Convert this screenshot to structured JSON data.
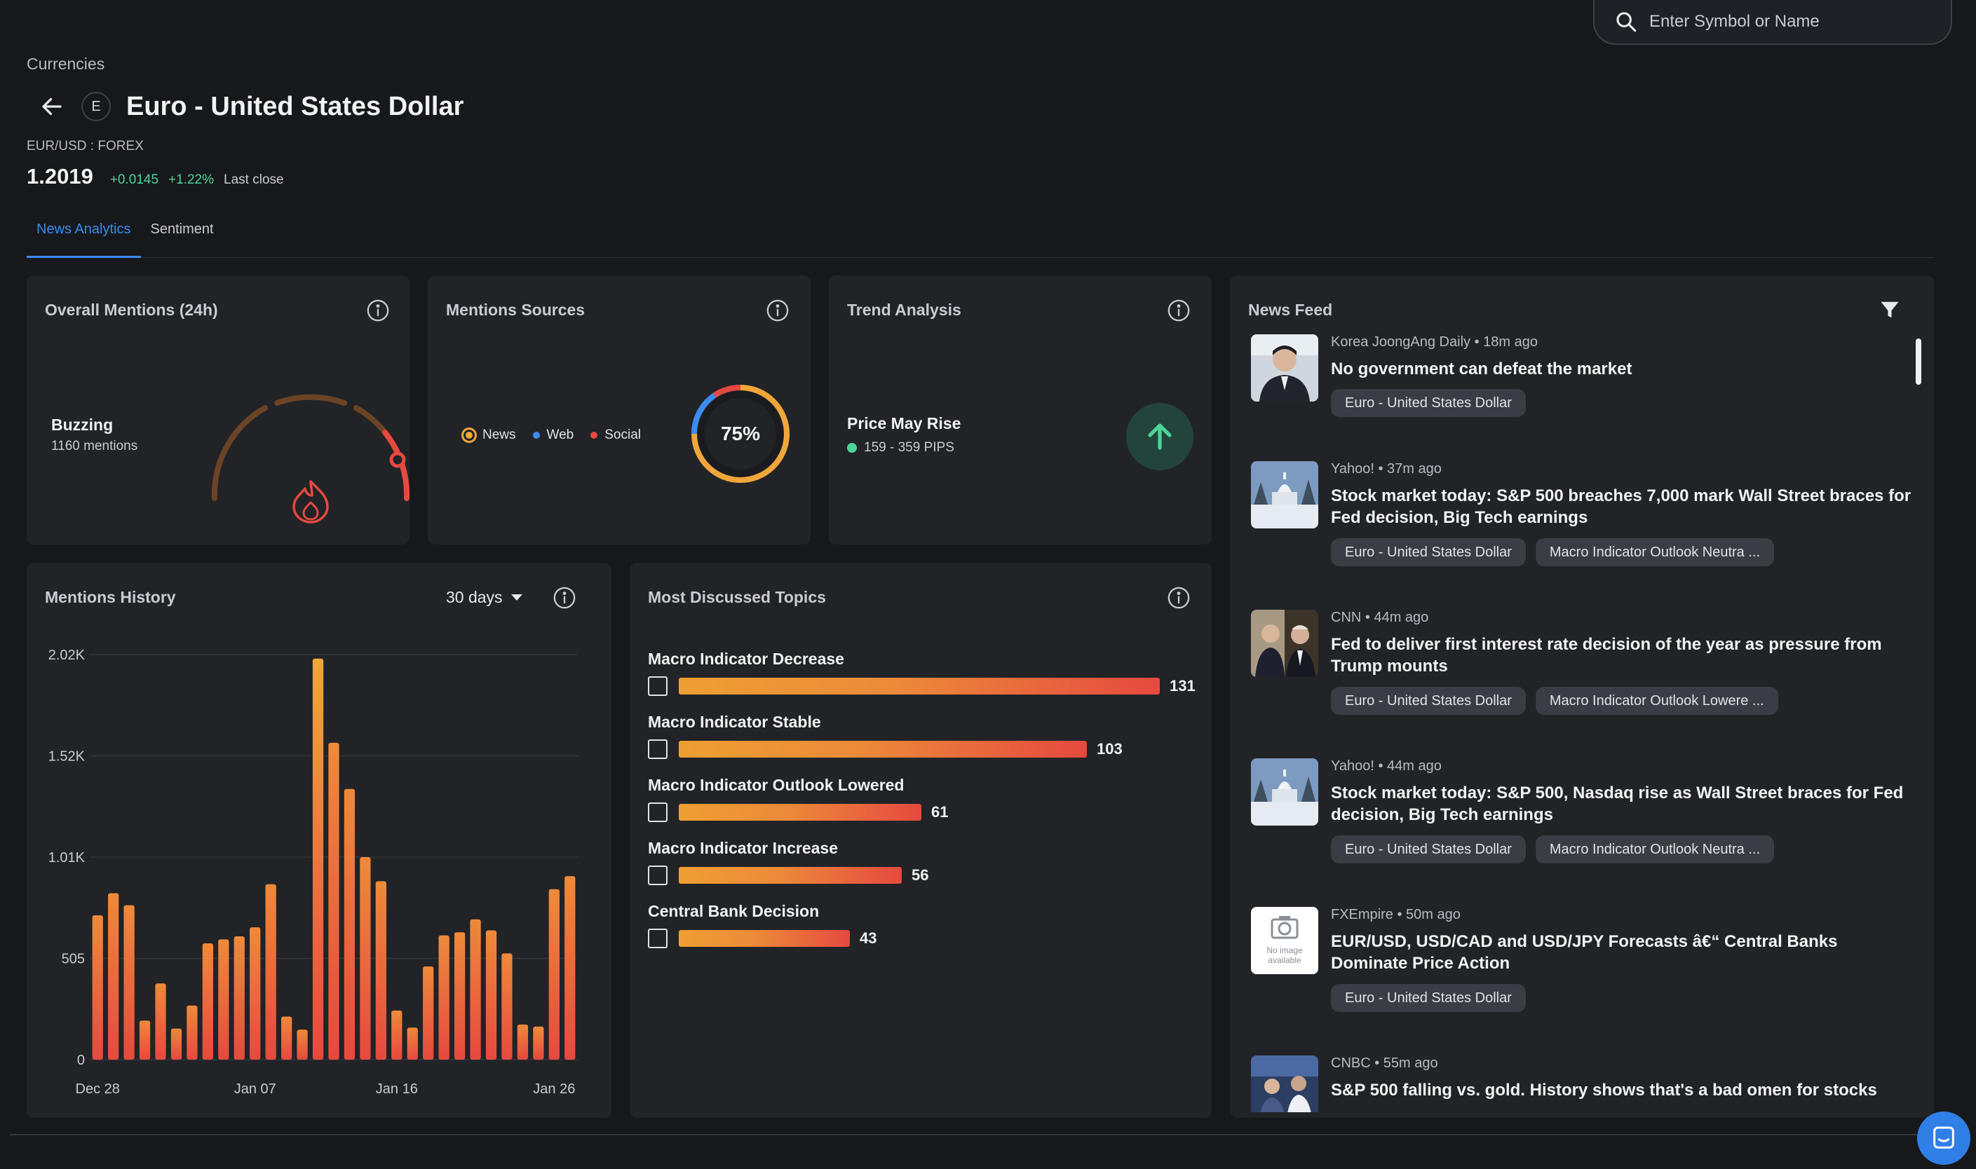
{
  "search": {
    "placeholder": "Enter Symbol or Name"
  },
  "breadcrumb": "Currencies",
  "header": {
    "initial": "E",
    "title": "Euro - United States Dollar",
    "symbol": "EUR/USD : FOREX",
    "price": "1.2019",
    "change": "+0.0145",
    "change_pct": "+1.22%",
    "price_note": "Last close"
  },
  "tabs": [
    {
      "label": "News Analytics",
      "active": true
    },
    {
      "label": "Sentiment",
      "active": false
    }
  ],
  "overall_mentions": {
    "title": "Overall Mentions (24h)",
    "level": "Buzzing",
    "count_text": "1160 mentions"
  },
  "mentions_sources": {
    "title": "Mentions Sources",
    "legend": [
      "News",
      "Web",
      "Social"
    ],
    "percent_text": "75%",
    "news_fraction": 0.75,
    "colors": {
      "news": "#f0a63a",
      "web": "#3b8cf0",
      "social": "#e6493f"
    }
  },
  "trend_analysis": {
    "title": "Trend Analysis",
    "label": "Price May Rise",
    "range": "159 - 359 PIPS",
    "color": "#4cd49a"
  },
  "mentions_history": {
    "title": "Mentions History",
    "range_select": "30 days"
  },
  "chart_data": {
    "type": "bar",
    "title": "Mentions History",
    "y_ticks": [
      "2.02K",
      "1.52K",
      "1.01K",
      "505",
      "0"
    ],
    "ylim": [
      0,
      2020
    ],
    "x_ticks": [
      "Dec 28",
      "Jan 07",
      "Jan 16",
      "Jan 26"
    ],
    "values": [
      720,
      830,
      770,
      195,
      380,
      155,
      270,
      580,
      600,
      615,
      660,
      875,
      215,
      150,
      2000,
      1580,
      1350,
      1010,
      890,
      245,
      160,
      465,
      620,
      635,
      700,
      645,
      530,
      175,
      165,
      850,
      915
    ]
  },
  "topics": {
    "title": "Most Discussed Topics",
    "items": [
      {
        "label": "Macro Indicator Decrease",
        "value": 131
      },
      {
        "label": "Macro Indicator Stable",
        "value": 103
      },
      {
        "label": "Macro Indicator Outlook Lowered",
        "value": 61
      },
      {
        "label": "Macro Indicator Increase",
        "value": 56
      },
      {
        "label": "Central Bank Decision",
        "value": 43
      }
    ]
  },
  "news_feed": {
    "title": "News Feed",
    "items": [
      {
        "source": "Korea JoongAng Daily",
        "time": "18m ago",
        "headline": "No government can defeat the market",
        "tags": [
          "Euro - United States Dollar"
        ],
        "thumb": "portrait"
      },
      {
        "source": "Yahoo!",
        "time": "37m ago",
        "headline": "Stock market today: S&P 500 breaches 7,000 mark Wall Street braces for Fed decision, Big Tech earnings",
        "tags": [
          "Euro - United States Dollar",
          "Macro Indicator Outlook Neutra ..."
        ],
        "thumb": "capitol"
      },
      {
        "source": "CNN",
        "time": "44m ago",
        "headline": "Fed to deliver first interest rate decision of the year as pressure from Trump mounts",
        "tags": [
          "Euro - United States Dollar",
          "Macro Indicator Outlook Lowere ..."
        ],
        "thumb": "two-people"
      },
      {
        "source": "Yahoo!",
        "time": "44m ago",
        "headline": "Stock market today: S&P 500, Nasdaq rise as Wall Street braces for Fed decision, Big Tech earnings",
        "tags": [
          "Euro - United States Dollar",
          "Macro Indicator Outlook Neutra ..."
        ],
        "thumb": "capitol"
      },
      {
        "source": "FXEmpire",
        "time": "50m ago",
        "headline": "EUR/USD, USD/CAD and USD/JPY Forecasts â€“ Central Banks Dominate Price Action",
        "tags": [
          "Euro - United States Dollar"
        ],
        "thumb": "no-image",
        "thumb_text": [
          "No image",
          "available"
        ]
      },
      {
        "source": "CNBC",
        "time": "55m ago",
        "headline": "S&P 500 falling vs. gold. History shows that's a bad omen for stocks",
        "tags": [],
        "thumb": "trading-floor"
      }
    ]
  }
}
